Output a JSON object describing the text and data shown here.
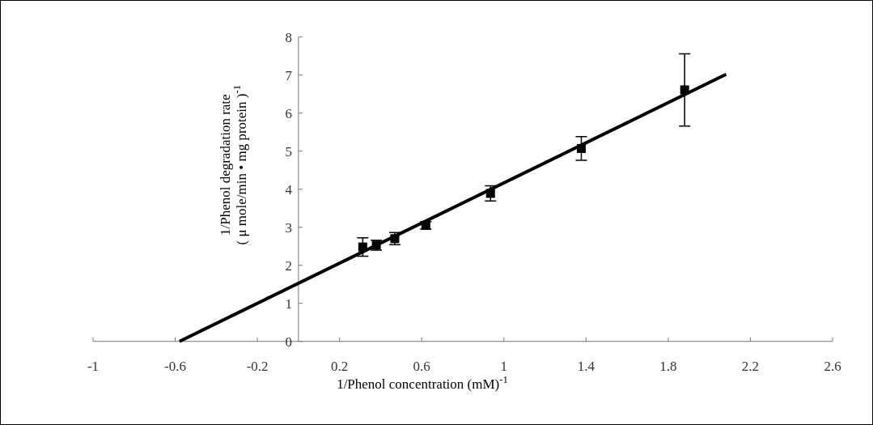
{
  "chart_data": {
    "type": "scatter",
    "xlabel": "1/Phenol concentration (mM)$^{-1}$",
    "ylabel": "1/Phenol degradation rate\n( μ mole/min • mg protein )$^{-1}$",
    "xlim": [
      -1,
      2.6
    ],
    "xticks": [
      -1,
      -0.6,
      -0.2,
      0.2,
      0.6,
      1,
      1.4,
      1.8,
      2.2,
      2.6
    ],
    "ylim": [
      0,
      8
    ],
    "yticks": [
      0,
      1,
      2,
      3,
      4,
      5,
      6,
      7,
      8
    ],
    "grid": false,
    "series": [
      {
        "color": "#000000",
        "marker": "square",
        "x": [
          0.313,
          0.379,
          0.469,
          0.62,
          0.935,
          1.377,
          1.88
        ],
        "values": [
          2.48,
          2.53,
          2.7,
          3.05,
          3.89,
          5.07,
          6.61
        ],
        "errors": [
          0.24,
          0.13,
          0.16,
          0.1,
          0.2,
          0.31,
          0.95
        ]
      },
      {
        "type": "line",
        "color": "#000000",
        "line_style": "solid",
        "marker": "none",
        "x": [
          -0.579,
          2.082
        ],
        "values": [
          0,
          7.02
        ]
      }
    ]
  }
}
